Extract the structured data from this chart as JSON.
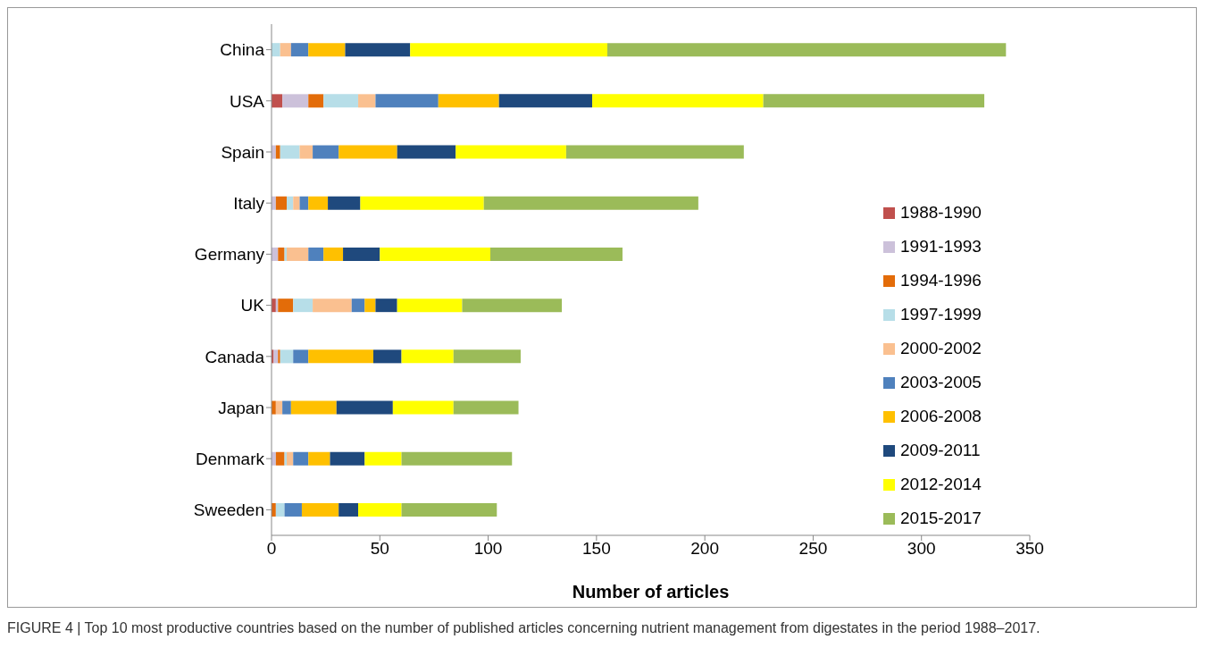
{
  "chart_data": {
    "type": "bar",
    "orientation": "horizontal",
    "stacked": true,
    "xlabel": "Number of articles",
    "categories": [
      "China",
      "USA",
      "Spain",
      "Italy",
      "Germany",
      "UK",
      "Canada",
      "Japan",
      "Denmark",
      "Sweeden"
    ],
    "series": [
      {
        "name": "1988-1990",
        "color": "#c0504d",
        "values": [
          0,
          5,
          0,
          0,
          0,
          2,
          1,
          0,
          0,
          0
        ]
      },
      {
        "name": "1991-1993",
        "color": "#ccc1da",
        "values": [
          0,
          12,
          2,
          2,
          3,
          1,
          2,
          0,
          2,
          0
        ]
      },
      {
        "name": "1994-1996",
        "color": "#e36c09",
        "values": [
          0,
          7,
          2,
          5,
          3,
          7,
          1,
          2,
          4,
          2
        ]
      },
      {
        "name": "1997-1999",
        "color": "#b7dee8",
        "values": [
          4,
          16,
          9,
          3,
          1,
          9,
          6,
          0,
          1,
          4
        ]
      },
      {
        "name": "2000-2002",
        "color": "#fac090",
        "values": [
          5,
          8,
          6,
          3,
          10,
          18,
          0,
          3,
          3,
          0
        ]
      },
      {
        "name": "2003-2005",
        "color": "#4f81bd",
        "values": [
          8,
          29,
          12,
          4,
          7,
          6,
          7,
          4,
          7,
          8
        ]
      },
      {
        "name": "2006-2008",
        "color": "#ffc000",
        "values": [
          17,
          28,
          27,
          9,
          9,
          5,
          30,
          21,
          10,
          17
        ]
      },
      {
        "name": "2009-2011",
        "color": "#1f497d",
        "values": [
          30,
          43,
          27,
          15,
          17,
          10,
          13,
          26,
          16,
          9
        ]
      },
      {
        "name": "2012-2014",
        "color": "#ffff00",
        "values": [
          91,
          79,
          51,
          57,
          51,
          30,
          24,
          28,
          17,
          20
        ]
      },
      {
        "name": "2015-2017",
        "color": "#9bbb59",
        "values": [
          184,
          102,
          82,
          99,
          61,
          46,
          31,
          30,
          51,
          44
        ]
      }
    ],
    "xlim": [
      0,
      350
    ],
    "xticks": [
      0,
      50,
      100,
      150,
      200,
      250,
      300,
      350
    ],
    "grid": false,
    "legend": "right",
    "annotations": [
      "FIGURE 4 | Top 10 most productive countries based on the number of published articles concerning nutrient management from digestates in the period 1988–2017."
    ]
  }
}
